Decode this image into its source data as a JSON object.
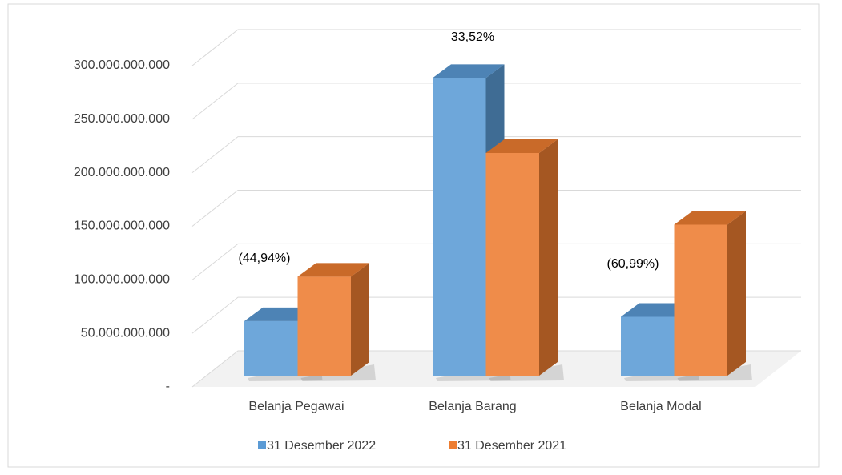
{
  "chart_data": {
    "type": "bar3d",
    "categories": [
      "Belanja Pegawai",
      "Belanja Barang",
      "Belanja Modal"
    ],
    "series": [
      {
        "name": "31 Desember 2022",
        "color": "#5b9bd5",
        "values": [
          51000000000,
          278000000000,
          55000000000
        ]
      },
      {
        "name": "31 Desember 2021",
        "color": "#ed7d31",
        "values": [
          92500000000,
          208000000000,
          141000000000
        ]
      }
    ],
    "annotations": [
      "(44,94%)",
      "33,52%",
      "(60,99%)"
    ],
    "ylim": [
      0,
      300000000000
    ],
    "yticks": [
      {
        "value": 0,
        "label": "-"
      },
      {
        "value": 50000000000,
        "label": "50.000.000.000"
      },
      {
        "value": 100000000000,
        "label": "100.000.000.000"
      },
      {
        "value": 150000000000,
        "label": "150.000.000.000"
      },
      {
        "value": 200000000000,
        "label": "200.000.000.000"
      },
      {
        "value": 250000000000,
        "label": "250.000.000.000"
      },
      {
        "value": 300000000000,
        "label": "300.000.000.000"
      }
    ],
    "grid": true,
    "legend": "bottom"
  }
}
